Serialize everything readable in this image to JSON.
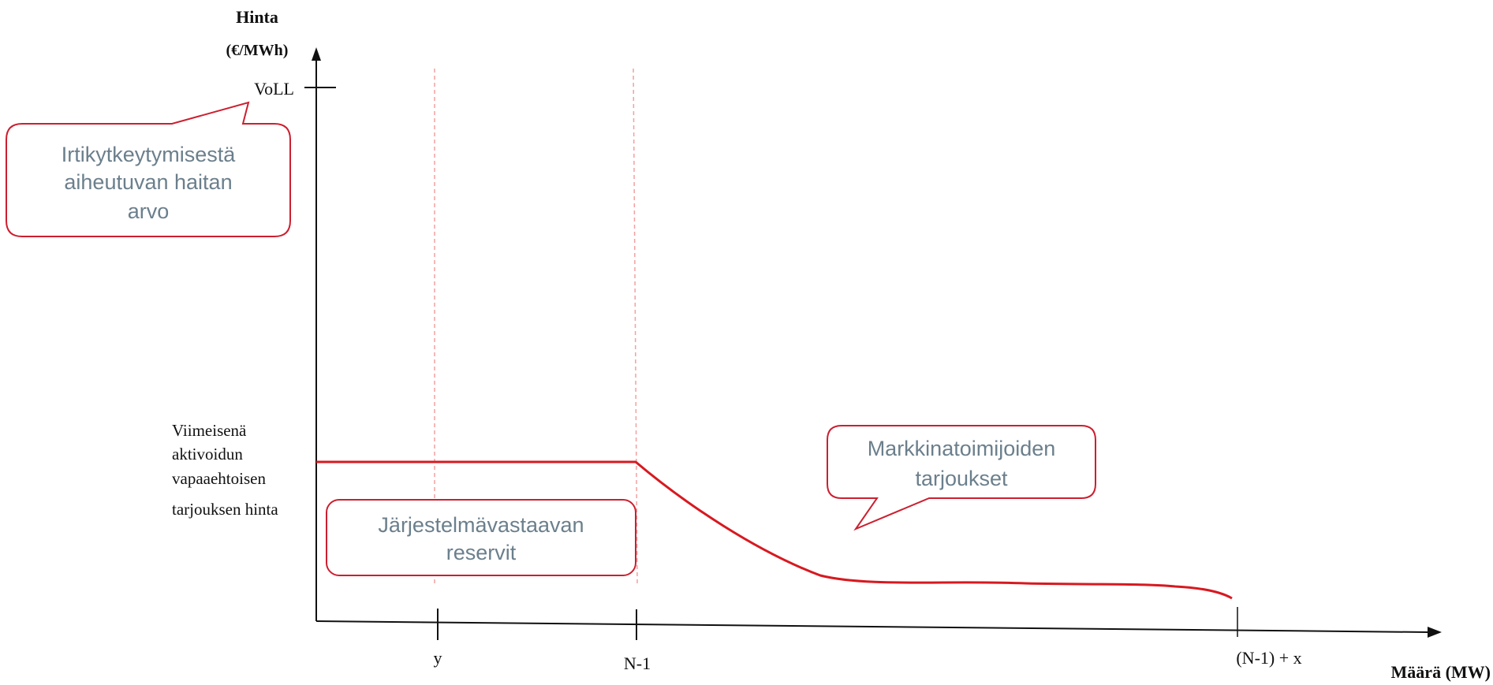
{
  "y_axis": {
    "label_line1": "Hinta",
    "label_line2": "(€/MWh)"
  },
  "x_axis": {
    "label": "Määrä (MW)"
  },
  "ticks": {
    "voll": "VoLL",
    "last_price_lines": [
      "Viimeisenä",
      "aktivoidun",
      "vapaaehtoisen",
      "tarjouksen hinta"
    ],
    "x_y": "y",
    "x_n1": "N-1",
    "x_n1x": "(N-1) + x"
  },
  "callouts": {
    "voll_note": [
      "Irtikytkeytymisestä",
      "aiheutuvan haitan",
      "arvo"
    ],
    "reserves": [
      "Järjestelmävastaavan",
      "reservit"
    ],
    "market_bids": [
      "Markkinatoimijoiden",
      "tarjoukset"
    ]
  },
  "colors": {
    "curve": "#d71920",
    "callout_border": "#cc1f2f",
    "guide": "#f3a0a0",
    "callout_text": "#6b7f8c",
    "axis": "#111111"
  }
}
